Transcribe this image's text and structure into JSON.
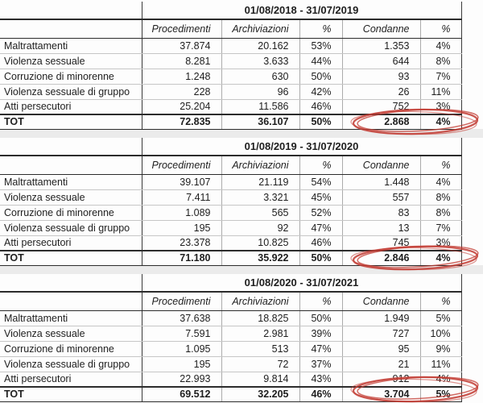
{
  "colors": {
    "red_circle": "#c23b32",
    "gap_band": "#ebebeb"
  },
  "columns": [
    "",
    "Procedimenti",
    "Archiviazioni",
    "%",
    "Condanne",
    "%"
  ],
  "tables": [
    {
      "period": "01/08/2018 - 31/07/2019",
      "rows": [
        {
          "label": "Maltrattamenti",
          "values": [
            "37.874",
            "20.162",
            "53%",
            "1.353",
            "4%"
          ]
        },
        {
          "label": "Violenza sessuale",
          "values": [
            "8.281",
            "3.633",
            "44%",
            "644",
            "8%"
          ]
        },
        {
          "label": "Corruzione di minorenne",
          "values": [
            "1.248",
            "630",
            "50%",
            "93",
            "7%"
          ]
        },
        {
          "label": "Violenza sessuale di gruppo",
          "values": [
            "228",
            "96",
            "42%",
            "26",
            "11%"
          ]
        },
        {
          "label": "Atti persecutori",
          "values": [
            "25.204",
            "11.586",
            "46%",
            "752",
            "3%"
          ]
        }
      ],
      "total": {
        "label": "TOT",
        "values": [
          "72.835",
          "36.107",
          "50%",
          "2.868",
          "4%"
        ]
      },
      "annotation": {
        "type": "hand-drawn red circle",
        "around": "TOT Condanne 2.868 and 4%"
      }
    },
    {
      "period": "01/08/2019 - 31/07/2020",
      "rows": [
        {
          "label": "Maltrattamenti",
          "values": [
            "39.107",
            "21.119",
            "54%",
            "1.448",
            "4%"
          ]
        },
        {
          "label": "Violenza sessuale",
          "values": [
            "7.411",
            "3.321",
            "45%",
            "557",
            "8%"
          ]
        },
        {
          "label": "Corruzione di minorenne",
          "values": [
            "1.089",
            "565",
            "52%",
            "83",
            "8%"
          ]
        },
        {
          "label": "Violenza sessuale di gruppo",
          "values": [
            "195",
            "92",
            "47%",
            "13",
            "7%"
          ]
        },
        {
          "label": "Atti persecutori",
          "values": [
            "23.378",
            "10.825",
            "46%",
            "745",
            "3%"
          ]
        }
      ],
      "total": {
        "label": "TOT",
        "values": [
          "71.180",
          "35.922",
          "50%",
          "2.846",
          "4%"
        ]
      },
      "annotation": {
        "type": "hand-drawn red circle",
        "around": "TOT Condanne 2.846 and 4%"
      }
    },
    {
      "period": "01/08/2020 - 31/07/2021",
      "rows": [
        {
          "label": "Maltrattamenti",
          "values": [
            "37.638",
            "18.825",
            "50%",
            "1.949",
            "5%"
          ]
        },
        {
          "label": "Violenza sessuale",
          "values": [
            "7.591",
            "2.981",
            "39%",
            "727",
            "10%"
          ]
        },
        {
          "label": "Corruzione di minorenne",
          "values": [
            "1.095",
            "513",
            "47%",
            "95",
            "9%"
          ]
        },
        {
          "label": "Violenza sessuale di gruppo",
          "values": [
            "195",
            "72",
            "37%",
            "21",
            "11%"
          ]
        },
        {
          "label": "Atti persecutori",
          "values": [
            "22.993",
            "9.814",
            "43%",
            "912",
            "4%"
          ]
        }
      ],
      "total": {
        "label": "TOT",
        "values": [
          "69.512",
          "32.205",
          "46%",
          "3.704",
          "5%"
        ]
      },
      "annotation": {
        "type": "hand-drawn red circle",
        "around": "TOT Condanne 3.704 and 5%"
      }
    }
  ]
}
